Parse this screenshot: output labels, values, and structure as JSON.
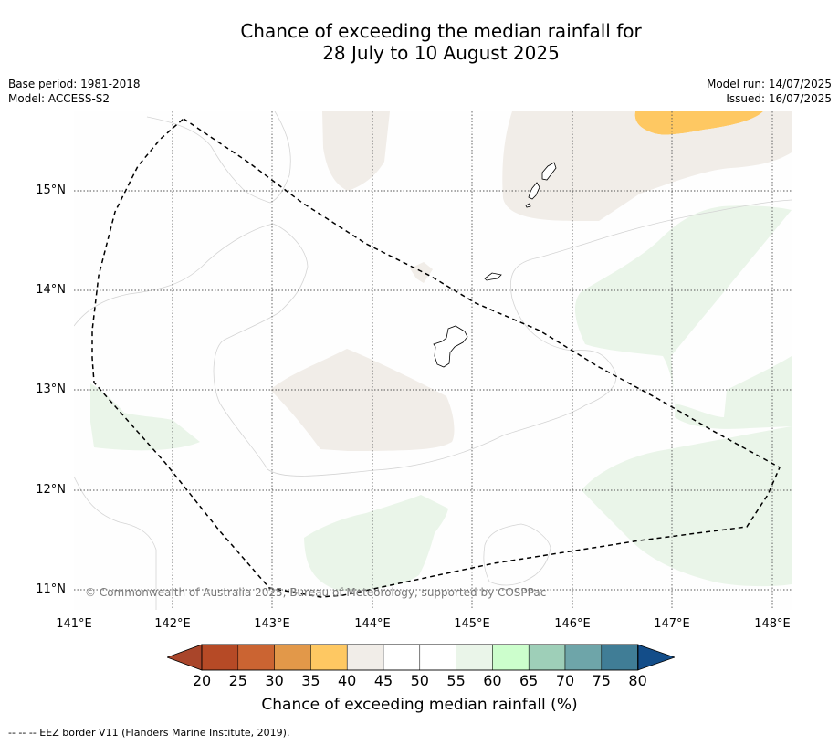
{
  "title": {
    "line1": "Chance of exceeding the median rainfall for",
    "line2": "28 July to 10 August 2025"
  },
  "meta": {
    "base_period": "Base period: 1981-2018",
    "model": "Model: ACCESS-S2",
    "model_run": "Model run: 14/07/2025",
    "issued": "Issued: 16/07/2025"
  },
  "map": {
    "lat_ticks": [
      "15°N",
      "14°N",
      "13°N",
      "12°N",
      "11°N"
    ],
    "lon_ticks": [
      "141°E",
      "142°E",
      "143°E",
      "144°E",
      "145°E",
      "146°E",
      "147°E",
      "148°E"
    ],
    "copyright": "© Commonwealth of Australia 2025, Bureau of Meteorology, supported by COSPPac",
    "colors": {
      "tan_40_45": "#f1ede8",
      "yellow_35_40": "#fec862",
      "green_55_60": "#eaf5e9"
    }
  },
  "legend": {
    "ticks": [
      "20",
      "25",
      "30",
      "35",
      "40",
      "45",
      "50",
      "55",
      "60",
      "65",
      "70",
      "75",
      "80"
    ],
    "colors": [
      "#a9452a",
      "#b64a26",
      "#cb6432",
      "#e29849",
      "#fec862",
      "#f1ede8",
      "#ffffff",
      "#ffffff",
      "#eaf5e9",
      "#ccfecc",
      "#9ecfb8",
      "#6ea5a9",
      "#407d96",
      "#134d89"
    ],
    "label": "Chance of exceeding median rainfall (%)"
  },
  "footnote": "--  --  -- EEZ border V11 (Flanders Marine Institute, 2019)."
}
